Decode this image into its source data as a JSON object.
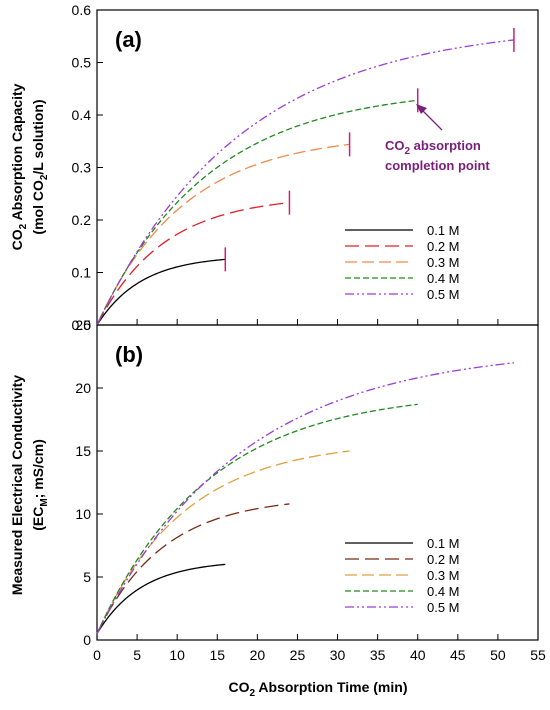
{
  "colors": {
    "0.1 M": "#000000",
    "0.2 M_a": "#e0202a",
    "0.2 M_b": "#7a2a14",
    "0.3 M_a": "#f08a4b",
    "0.3 M_b": "#e0a040",
    "0.4 M": "#1e8a1e",
    "0.5 M": "#9b3cd6",
    "annotation": "#7a1f7a"
  },
  "chart_data": [
    {
      "type": "line",
      "panel_label": "(a)",
      "ylabel_parts": {
        "line1_pre": "CO",
        "line1_sub": "2",
        "line1_post": " Absorption Capacity",
        "line2_pre": "(mol CO",
        "line2_sub": "2",
        "line2_post": "/L solution)"
      },
      "xlim": [
        0,
        55
      ],
      "ylim": [
        0,
        0.6
      ],
      "yticks": [
        "0.0",
        "0.1",
        "0.2",
        "0.3",
        "0.4",
        "0.5",
        "0.6"
      ],
      "legend": [
        "0.1 M",
        "0.2 M",
        "0.3 M",
        "0.4 M",
        "0.5 M"
      ],
      "legend_position": "lower-right",
      "annotation": {
        "line1_pre": "CO",
        "line1_sub": "2",
        "line1_post": " absorption",
        "line2": "completion point"
      },
      "series": [
        {
          "name": "0.1 M",
          "end_x": 16,
          "end_y": 0.125
        },
        {
          "name": "0.2 M",
          "end_x": 24,
          "end_y": 0.233
        },
        {
          "name": "0.3 M",
          "end_x": 31.5,
          "end_y": 0.344
        },
        {
          "name": "0.4 M",
          "end_x": 40,
          "end_y": 0.428
        },
        {
          "name": "0.5 M",
          "end_x": 52,
          "end_y": 0.543
        }
      ]
    },
    {
      "type": "line",
      "panel_label": "(b)",
      "ylabel_parts": {
        "line1": "Measured Electrical Conductivity",
        "line2_pre": "(EC",
        "line2_sub": "M",
        "line2_post": "; mS/cm)"
      },
      "xlabel_parts": {
        "pre": "CO",
        "sub": "2",
        "post": " Absorption Time (min)"
      },
      "xlim": [
        0,
        55
      ],
      "xticks": [
        "0",
        "5",
        "10",
        "15",
        "20",
        "25",
        "30",
        "35",
        "40",
        "45",
        "50",
        "55"
      ],
      "ylim": [
        0,
        25
      ],
      "yticks": [
        "0",
        "5",
        "10",
        "15",
        "20",
        "25"
      ],
      "legend": [
        "0.1 M",
        "0.2 M",
        "0.3 M",
        "0.4 M",
        "0.5 M"
      ],
      "legend_position": "lower-right",
      "series": [
        {
          "name": "0.1 M",
          "start_y": 0.5,
          "end_x": 16,
          "end_y": 6.0
        },
        {
          "name": "0.2 M",
          "start_y": 0.5,
          "end_x": 24,
          "end_y": 10.8
        },
        {
          "name": "0.3 M",
          "start_y": 0.5,
          "end_x": 31.5,
          "end_y": 15.0
        },
        {
          "name": "0.4 M",
          "start_y": 0.5,
          "end_x": 40,
          "end_y": 18.7
        },
        {
          "name": "0.5 M",
          "start_y": 0.5,
          "end_x": 52,
          "end_y": 22.0
        }
      ]
    }
  ]
}
